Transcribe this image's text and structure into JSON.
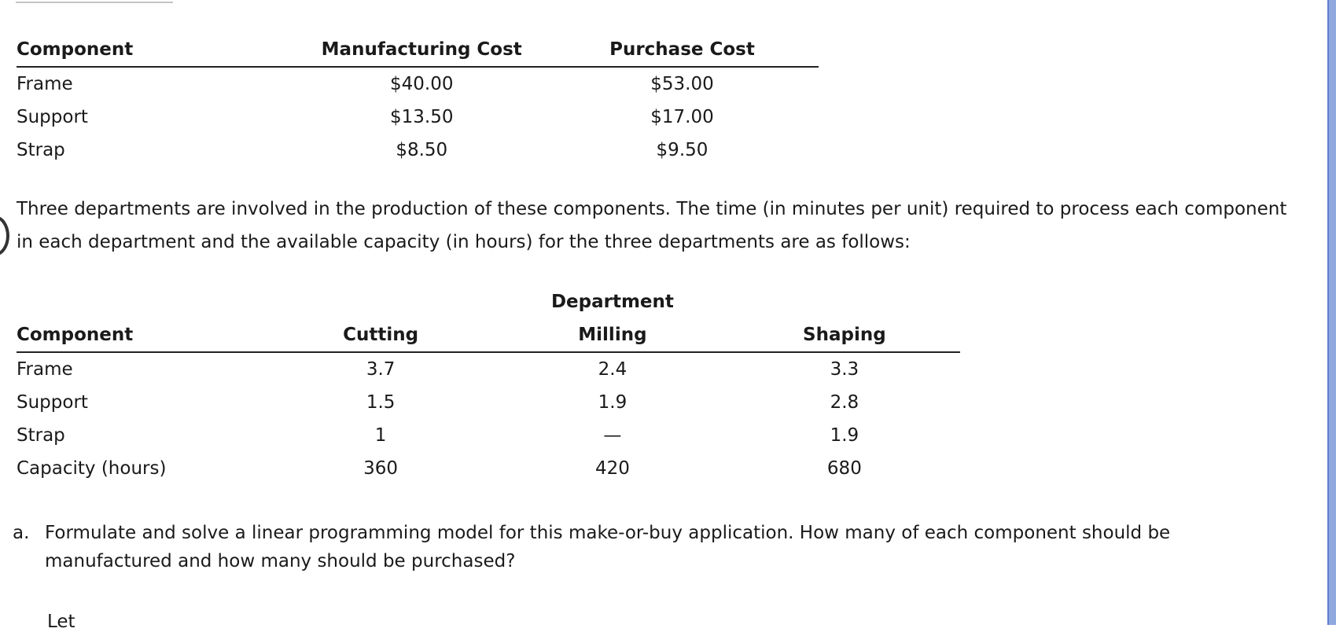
{
  "cost_table": {
    "headers": [
      "Component",
      "Manufacturing Cost",
      "Purchase Cost"
    ],
    "rows": [
      [
        "Frame",
        "$40.00",
        "$53.00"
      ],
      [
        "Support",
        "$13.50",
        "$17.00"
      ],
      [
        "Strap",
        "$8.50",
        "$9.50"
      ]
    ]
  },
  "paragraph": "Three departments are involved in the production of these components. The time (in minutes per unit) required to process each component in each department and the available capacity (in hours) for the three departments are as follows:",
  "dept_table": {
    "group_header": "Department",
    "headers": [
      "Component",
      "Cutting",
      "Milling",
      "Shaping"
    ],
    "rows": [
      [
        "Frame",
        "3.7",
        "2.4",
        "3.3"
      ],
      [
        "Support",
        "1.5",
        "1.9",
        "2.8"
      ],
      [
        "Strap",
        "1",
        "—",
        "1.9"
      ],
      [
        "Capacity (hours)",
        "360",
        "420",
        "680"
      ]
    ]
  },
  "question": {
    "marker": "a.",
    "text": "Formulate and solve a linear programming model for this make-or-buy application. How many of each component should be manufactured and how many should be purchased?"
  },
  "let_text": "Let"
}
